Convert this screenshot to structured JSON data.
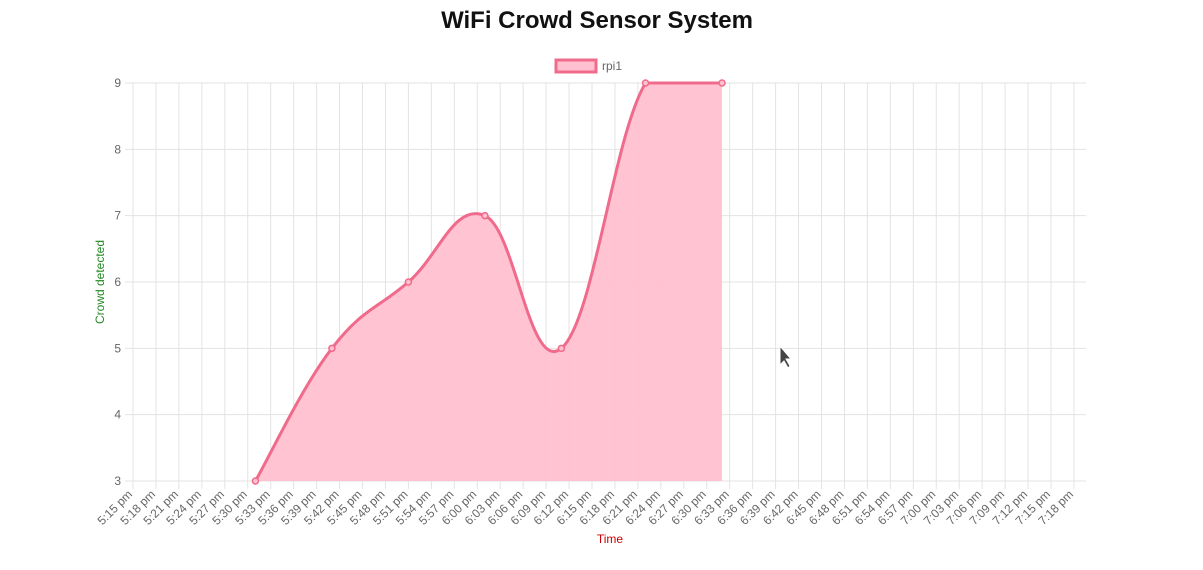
{
  "page": {
    "title": "WiFi Crowd Sensor System"
  },
  "chart_data": {
    "type": "area",
    "title": "WiFi Crowd Sensor System",
    "xlabel": "Time",
    "ylabel": "Crowd detected",
    "ylim": [
      3,
      9
    ],
    "y_ticks": [
      "9",
      "8",
      "7",
      "6",
      "5",
      "4",
      "3"
    ],
    "x": [
      "5:15 pm",
      "5:18 pm",
      "5:21 pm",
      "5:24 pm",
      "5:27 pm",
      "5:30 pm",
      "5:33 pm",
      "5:36 pm",
      "5:39 pm",
      "5:42 pm",
      "5:45 pm",
      "5:48 pm",
      "5:51 pm",
      "5:54 pm",
      "5:57 pm",
      "6:00 pm",
      "6:03 pm",
      "6:06 pm",
      "6:09 pm",
      "6:12 pm",
      "6:15 pm",
      "6:18 pm",
      "6:21 pm",
      "6:24 pm",
      "6:27 pm",
      "6:30 pm",
      "6:33 pm",
      "6:36 pm",
      "6:39 pm",
      "6:42 pm",
      "6:45 pm",
      "6:48 pm",
      "6:51 pm",
      "6:54 pm",
      "6:57 pm",
      "7:00 pm",
      "7:03 pm",
      "7:06 pm",
      "7:09 pm",
      "7:12 pm",
      "7:15 pm",
      "7:18 pm"
    ],
    "series": [
      {
        "name": "rpi1",
        "points": [
          {
            "x": "5:31 pm",
            "y": 3
          },
          {
            "x": "5:41 pm",
            "y": 5
          },
          {
            "x": "5:51 pm",
            "y": 6
          },
          {
            "x": "6:01 pm",
            "y": 7
          },
          {
            "x": "6:11 pm",
            "y": 5
          },
          {
            "x": "6:22 pm",
            "y": 9
          },
          {
            "x": "6:32 pm",
            "y": 9
          }
        ],
        "border_color": "#f06b8b",
        "fill_color": "#ffc0cf"
      }
    ],
    "grid": true,
    "legend_position": "top"
  }
}
